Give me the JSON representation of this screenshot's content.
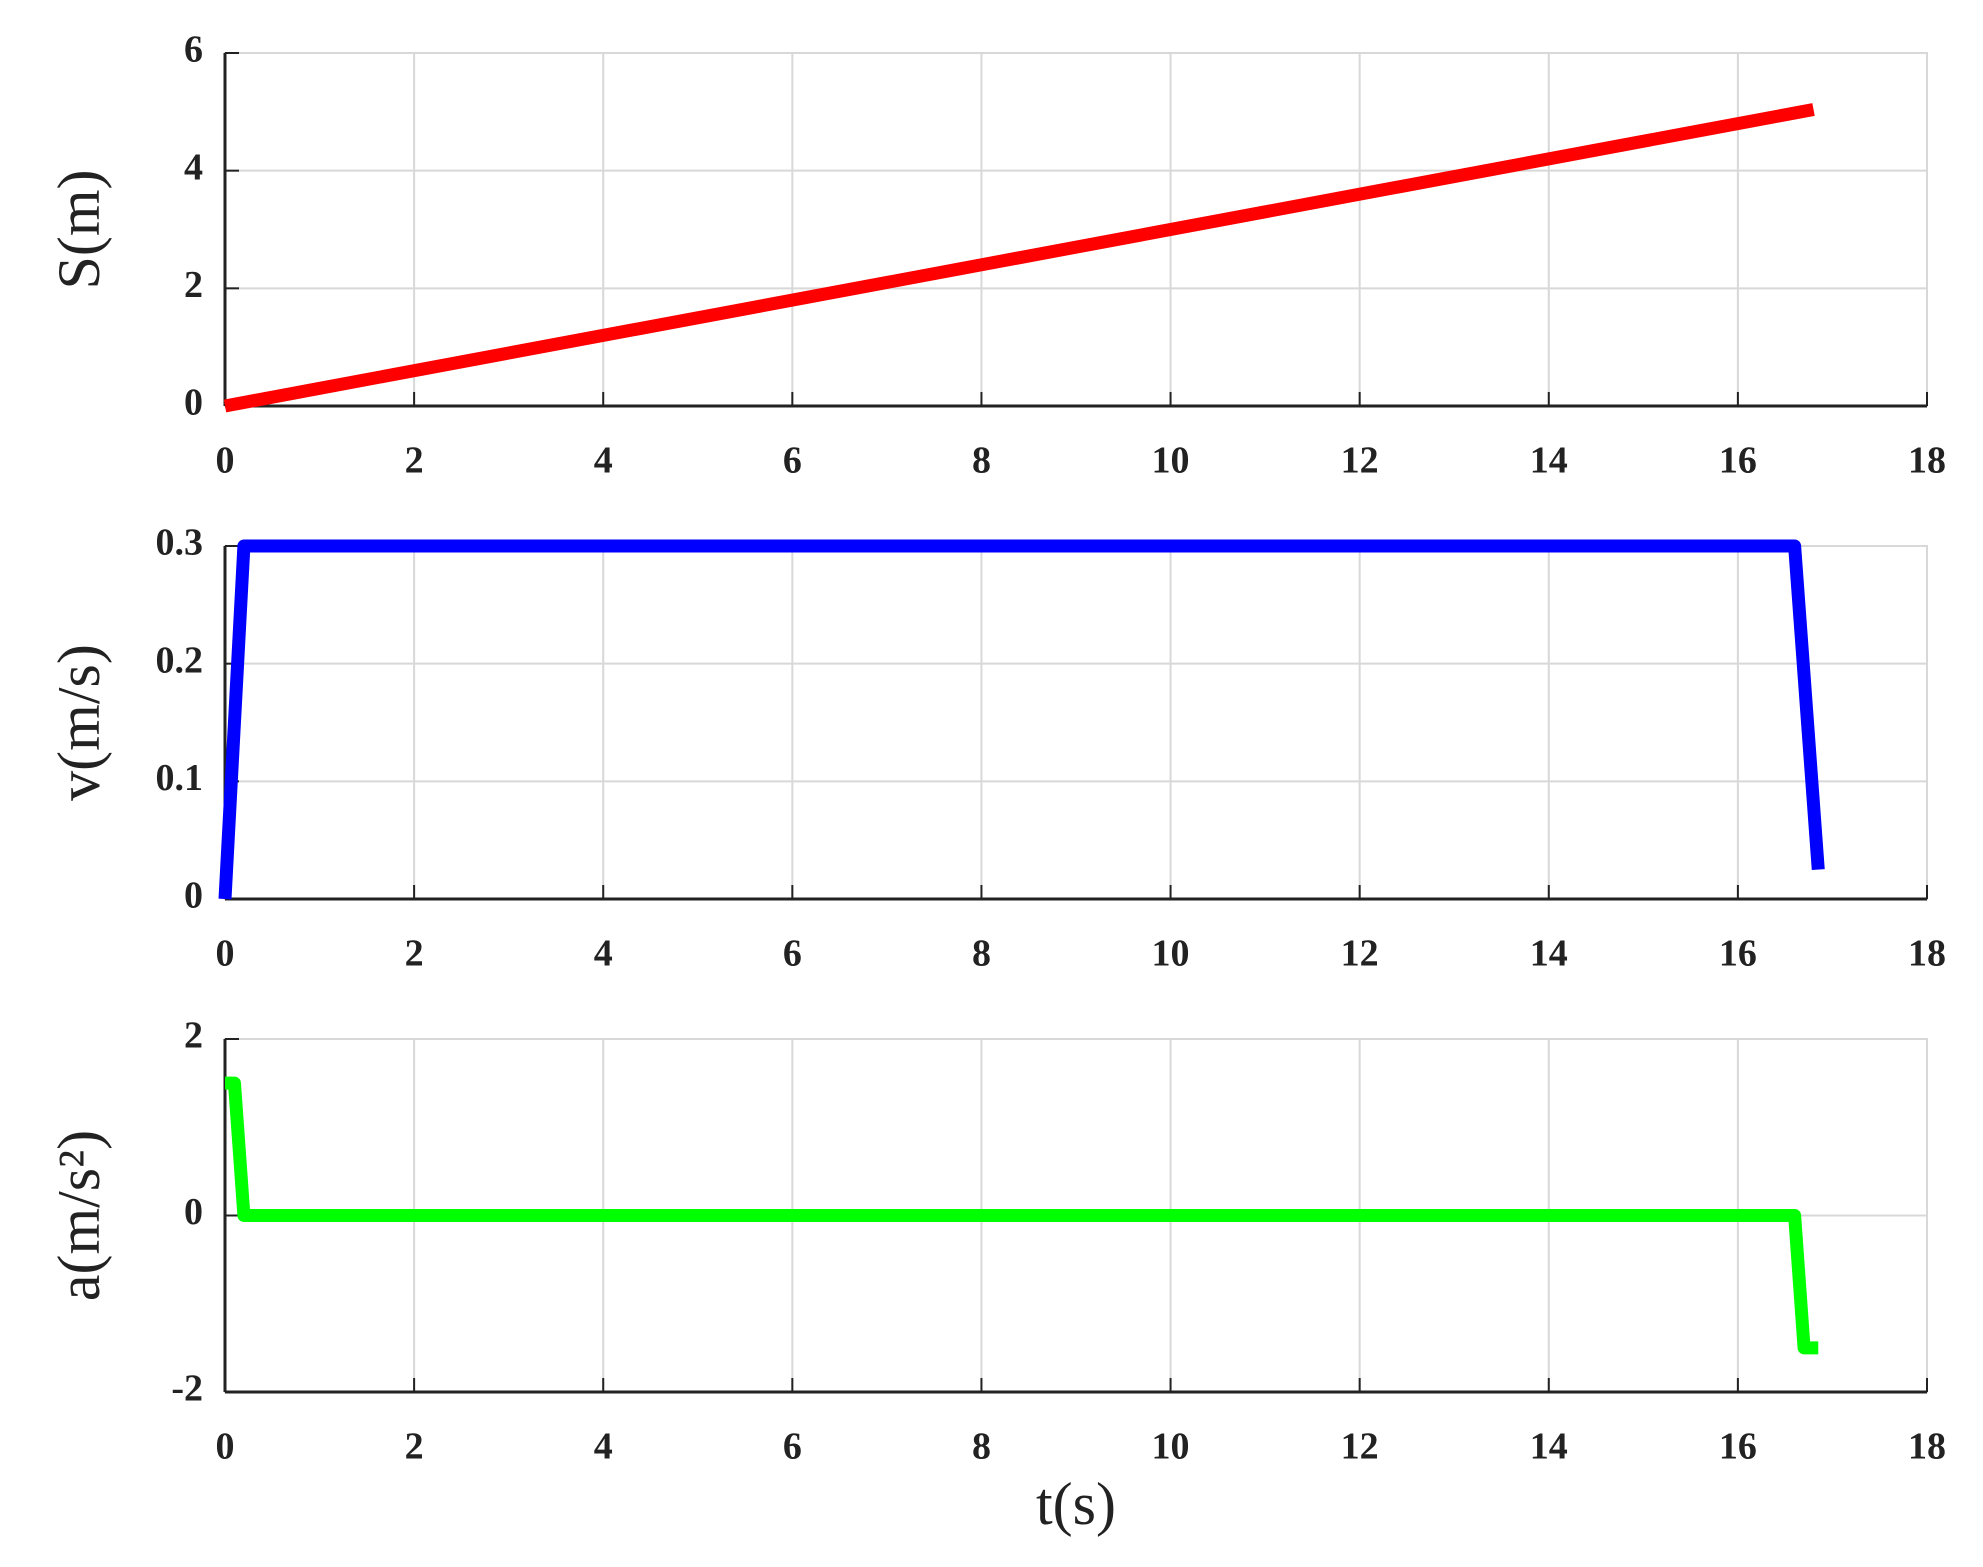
{
  "chart_data": [
    {
      "type": "line",
      "ylabel": "S(m)",
      "color": "#ff0000",
      "x": [
        0,
        16.8
      ],
      "values": [
        0,
        5.04
      ],
      "xlim": [
        0,
        18
      ],
      "xticks": [
        0,
        2,
        4,
        6,
        8,
        10,
        12,
        14,
        16,
        18
      ],
      "ylim": [
        0,
        6
      ],
      "yticks": [
        0,
        2,
        4,
        6
      ],
      "grid": true
    },
    {
      "type": "line",
      "ylabel": "v(m/s)",
      "color": "#0000ff",
      "x": [
        0,
        0.2,
        16.6,
        16.85
      ],
      "values": [
        0,
        0.3,
        0.3,
        0.025
      ],
      "xlim": [
        0,
        18
      ],
      "xticks": [
        0,
        2,
        4,
        6,
        8,
        10,
        12,
        14,
        16,
        18
      ],
      "ylim": [
        0,
        0.3
      ],
      "yticks": [
        0,
        0.1,
        0.2,
        0.3
      ],
      "grid": true
    },
    {
      "type": "line",
      "ylabel": "a(m/s²)",
      "xlabel": "t(s)",
      "color": "#00ff00",
      "x": [
        0,
        0.1,
        0.2,
        16.6,
        16.7,
        16.85
      ],
      "values": [
        1.5,
        1.5,
        0,
        0,
        -1.5,
        -1.5
      ],
      "xlim": [
        0,
        18
      ],
      "xticks": [
        0,
        2,
        4,
        6,
        8,
        10,
        12,
        14,
        16,
        18
      ],
      "ylim": [
        -2,
        2
      ],
      "yticks": [
        -2,
        0,
        2
      ],
      "grid": true
    }
  ]
}
